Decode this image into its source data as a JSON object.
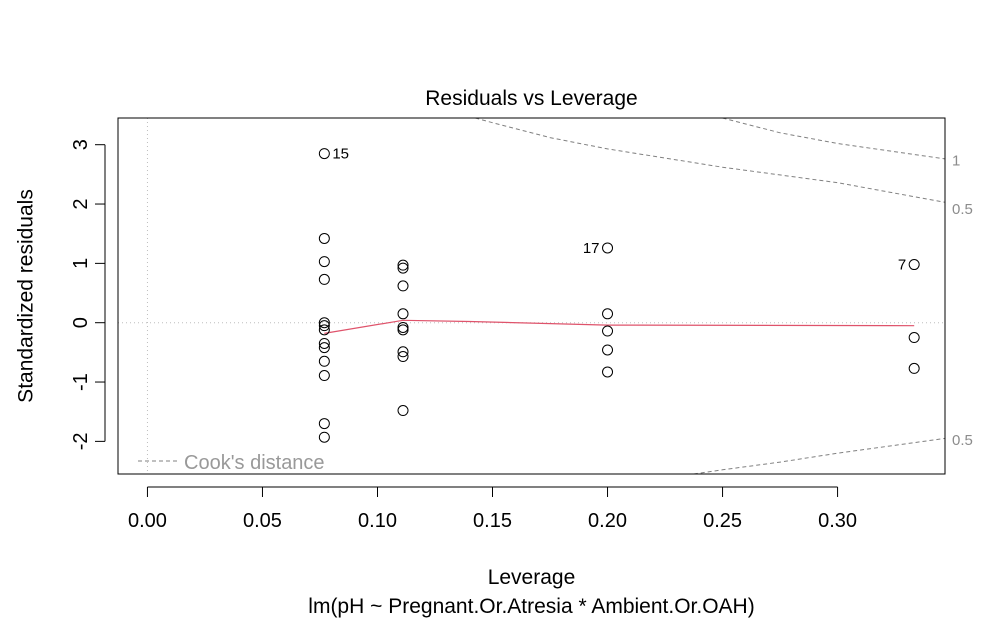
{
  "chart_data": {
    "type": "scatter",
    "title": "Residuals vs Leverage",
    "xlabel": "Leverage",
    "subtitle": "lm(pH ~ Pregnant.Or.Atresia * Ambient.Or.OAH)",
    "ylabel": "Standardized residuals",
    "xlim": [
      -0.0128,
      0.3467
    ],
    "ylim": [
      -2.55,
      3.45
    ],
    "x_ticks": [
      "0.00",
      "0.05",
      "0.10",
      "0.15",
      "0.20",
      "0.25",
      "0.30"
    ],
    "x_tick_values": [
      0,
      0.05,
      0.1,
      0.15,
      0.2,
      0.25,
      0.3
    ],
    "y_ticks": [
      "-2",
      "-1",
      "0",
      "1",
      "2",
      "3"
    ],
    "y_tick_values": [
      -2,
      -1,
      0,
      1,
      2,
      3
    ],
    "points": [
      {
        "x": 0.0769,
        "y": 2.85,
        "label": "15"
      },
      {
        "x": 0.0769,
        "y": 1.42,
        "label": ""
      },
      {
        "x": 0.0769,
        "y": 1.03,
        "label": ""
      },
      {
        "x": 0.0769,
        "y": 0.73,
        "label": ""
      },
      {
        "x": 0.0769,
        "y": 0.0,
        "label": ""
      },
      {
        "x": 0.0769,
        "y": -0.05,
        "label": ""
      },
      {
        "x": 0.0769,
        "y": -0.12,
        "label": ""
      },
      {
        "x": 0.0769,
        "y": -0.35,
        "label": ""
      },
      {
        "x": 0.0769,
        "y": -0.42,
        "label": ""
      },
      {
        "x": 0.0769,
        "y": -0.65,
        "label": ""
      },
      {
        "x": 0.0769,
        "y": -0.89,
        "label": ""
      },
      {
        "x": 0.0769,
        "y": -1.7,
        "label": ""
      },
      {
        "x": 0.0769,
        "y": -1.93,
        "label": ""
      },
      {
        "x": 0.1111,
        "y": 0.97,
        "label": ""
      },
      {
        "x": 0.1111,
        "y": 0.92,
        "label": ""
      },
      {
        "x": 0.1111,
        "y": 0.62,
        "label": ""
      },
      {
        "x": 0.1111,
        "y": 0.15,
        "label": ""
      },
      {
        "x": 0.1111,
        "y": -0.08,
        "label": ""
      },
      {
        "x": 0.1111,
        "y": -0.12,
        "label": ""
      },
      {
        "x": 0.1111,
        "y": -0.49,
        "label": ""
      },
      {
        "x": 0.1111,
        "y": -0.57,
        "label": ""
      },
      {
        "x": 0.1111,
        "y": -1.48,
        "label": ""
      },
      {
        "x": 0.2,
        "y": 1.26,
        "label": "17"
      },
      {
        "x": 0.2,
        "y": 0.15,
        "label": ""
      },
      {
        "x": 0.2,
        "y": -0.14,
        "label": ""
      },
      {
        "x": 0.2,
        "y": -0.46,
        "label": ""
      },
      {
        "x": 0.2,
        "y": -0.83,
        "label": ""
      },
      {
        "x": 0.3333,
        "y": 0.98,
        "label": "7"
      },
      {
        "x": 0.3333,
        "y": -0.25,
        "label": ""
      },
      {
        "x": 0.3333,
        "y": -0.77,
        "label": ""
      }
    ],
    "smooth": [
      {
        "x": 0.0769,
        "y": -0.18
      },
      {
        "x": 0.1111,
        "y": 0.04
      },
      {
        "x": 0.14,
        "y": 0.02
      },
      {
        "x": 0.2,
        "y": -0.04
      },
      {
        "x": 0.3333,
        "y": -0.05
      }
    ],
    "cooks_contours": [
      {
        "label": "1",
        "side": "upper",
        "points": [
          {
            "x": 0.1425,
            "y": 3.45
          },
          {
            "x": 0.15,
            "y": 3.37
          },
          {
            "x": 0.175,
            "y": 3.12
          },
          {
            "x": 0.2,
            "y": 2.93
          },
          {
            "x": 0.25,
            "y": 2.62
          },
          {
            "x": 0.3,
            "y": 2.36
          },
          {
            "x": 0.3467,
            "y": 2.03
          }
        ]
      },
      {
        "label": "0.5",
        "side": "upper",
        "points": [
          {
            "x": 0.25,
            "y": 3.45
          },
          {
            "x": 0.275,
            "y": 3.2
          },
          {
            "x": 0.3,
            "y": 3.02
          },
          {
            "x": 0.3467,
            "y": 2.76
          }
        ]
      },
      {
        "label": "0.5",
        "side": "lower",
        "points": [
          {
            "x": 0.2375,
            "y": -2.55
          },
          {
            "x": 0.25,
            "y": -2.48
          },
          {
            "x": 0.275,
            "y": -2.35
          },
          {
            "x": 0.3,
            "y": -2.2
          },
          {
            "x": 0.3467,
            "y": -1.95
          }
        ]
      }
    ],
    "cooks_edge_labels": [
      {
        "text": "1",
        "y": 2.73
      },
      {
        "text": "0.5",
        "y": 1.92
      },
      {
        "text": "0.5",
        "y": -1.98
      }
    ],
    "legend": {
      "text": "Cook's distance",
      "placement": "bottom-left"
    },
    "colors": {
      "points": "#000000",
      "smooth": "#df536b",
      "cooks": "#808080",
      "reference": "#bebebe"
    }
  }
}
